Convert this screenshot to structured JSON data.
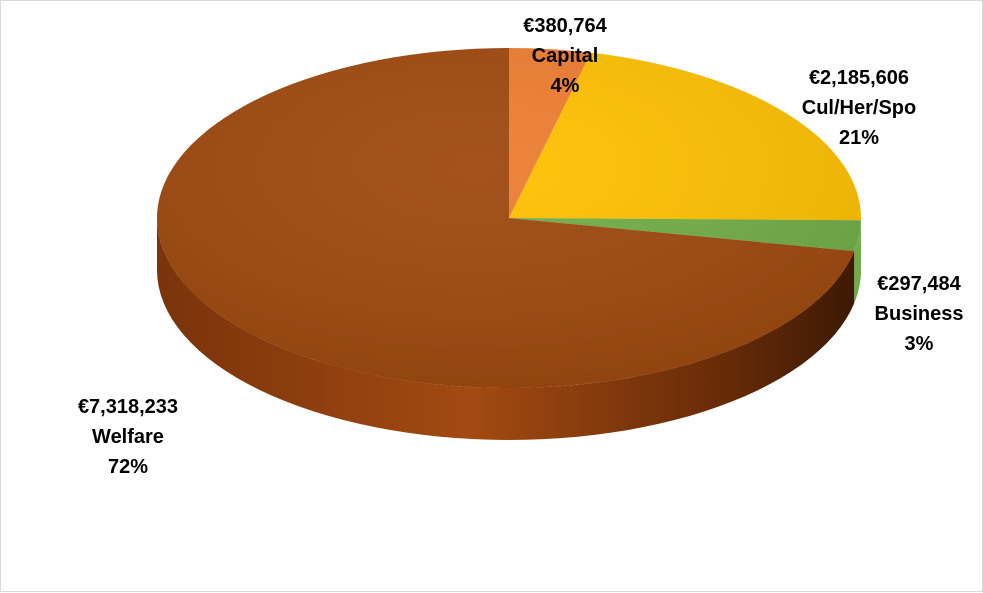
{
  "chart_data": {
    "type": "pie",
    "title": "",
    "slices": [
      {
        "name": "Capital",
        "value": 380764,
        "value_label": "€380,764",
        "percent_label": "4%",
        "color": "#ED7D31"
      },
      {
        "name": "Cul/Her/Spo",
        "value": 2185606,
        "value_label": "€2,185,606",
        "percent_label": "21%",
        "color": "#FFC000"
      },
      {
        "name": "Business",
        "value": 297484,
        "value_label": "€297,484",
        "percent_label": "3%",
        "color": "#70AD47"
      },
      {
        "name": "Welfare",
        "value": 7318233,
        "value_label": "€7,318,233",
        "percent_label": "72%",
        "color": "#9E480E"
      }
    ],
    "style": "3d",
    "legend": "none",
    "data_labels": "outside-end"
  }
}
